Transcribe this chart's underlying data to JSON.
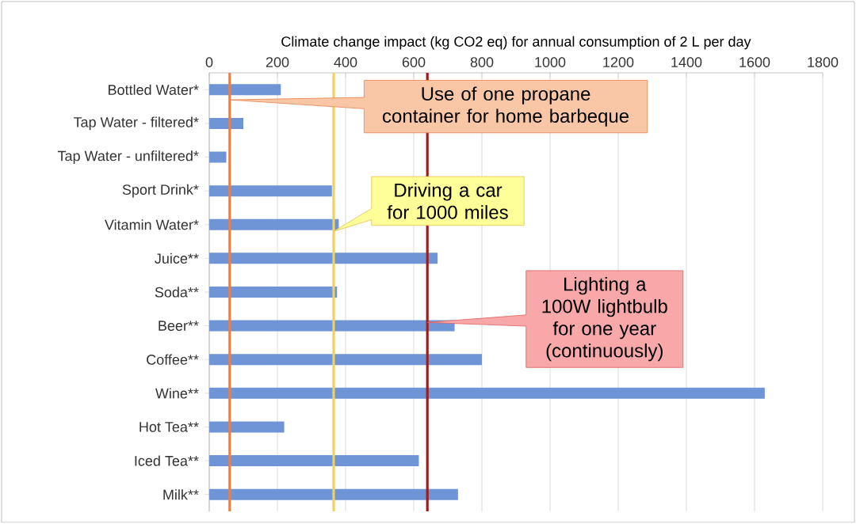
{
  "chart_data": {
    "type": "bar",
    "orientation": "horizontal",
    "xlabel": "Climate change impact (kg CO2 eq) for annual consumption of 2 L per day",
    "categories": [
      "Bottled Water*",
      "Tap Water - filtered*",
      "Tap Water - unfiltered*",
      "Sport Drink*",
      "Vitamin Water*",
      "Juice**",
      "Soda**",
      "Beer**",
      "Coffee**",
      "Wine**",
      "Hot Tea**",
      "Iced Tea**",
      "Milk**"
    ],
    "values": [
      210,
      100,
      50,
      360,
      380,
      670,
      375,
      720,
      800,
      1630,
      220,
      615,
      730
    ],
    "color": "#6f95d6",
    "xlim": [
      0,
      1800
    ],
    "xticks": [
      0,
      200,
      400,
      600,
      800,
      1000,
      1200,
      1400,
      1600,
      1800
    ],
    "grid": "x",
    "annotations": [
      "Use of one propane container for home barbeque",
      {
        "text": "Driving a car for 1000 miles",
        "x": 365
      },
      "Lighting a 100W lightbulb for one year (continuously)"
    ],
    "ref_lines": [
      {
        "axis": "x",
        "value": 60,
        "color": "#e8804a"
      },
      {
        "axis": "x",
        "value": 365,
        "color": "#f0d060"
      },
      {
        "axis": "x",
        "value": 640,
        "color": "#a01c1c"
      }
    ]
  }
}
